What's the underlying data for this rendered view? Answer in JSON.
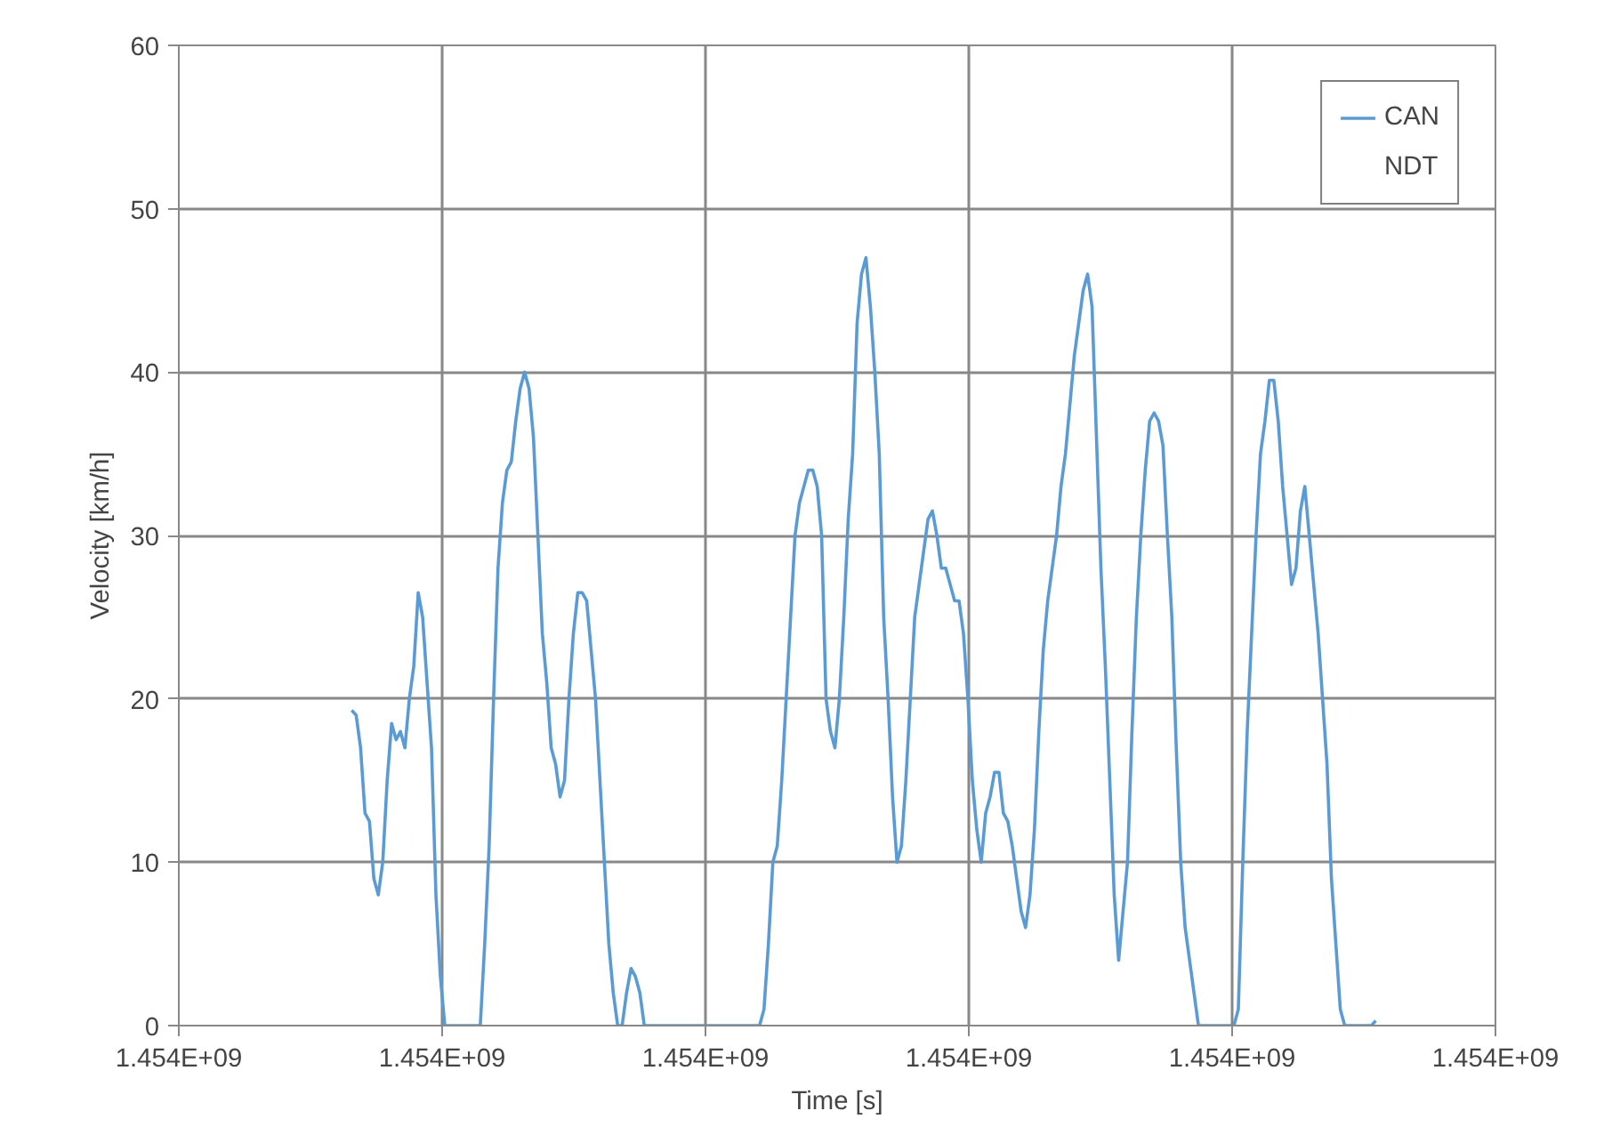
{
  "chart_data": {
    "type": "line",
    "xlabel": "Time [s]",
    "ylabel": "Velocity [km/h]",
    "annotations": [
      "1.454E+09",
      "1.454E+09",
      "1.454E+09",
      "1.454E+09",
      "1.454E+09",
      "1.454E+09"
    ],
    "categories": [
      null,
      null,
      null,
      null,
      null,
      null,
      null,
      null,
      null,
      null,
      null,
      null,
      null,
      null,
      null,
      null,
      null,
      null,
      null,
      null,
      null,
      null,
      null,
      null,
      null,
      null,
      null,
      null,
      null,
      null,
      null,
      null,
      null,
      null,
      null,
      null,
      null,
      null,
      null,
      null,
      null,
      null,
      null,
      null,
      null,
      null,
      null,
      null,
      null,
      null,
      null,
      null,
      null,
      null,
      null,
      null,
      null,
      null,
      null,
      null,
      null,
      null,
      null,
      null,
      null,
      null,
      null,
      null,
      null,
      null,
      null,
      null,
      null,
      null,
      null,
      null,
      null,
      null,
      null,
      null,
      null,
      null,
      null,
      null,
      null,
      null,
      null,
      null,
      null,
      null,
      null,
      null,
      null,
      null,
      null,
      null,
      null,
      null,
      null,
      null,
      null,
      null,
      null,
      null,
      null,
      null,
      null,
      null,
      null,
      null,
      null,
      null,
      null,
      null,
      null,
      null,
      null,
      null,
      null,
      null,
      null,
      null,
      null,
      null,
      null,
      null,
      null,
      null,
      null,
      null,
      null,
      null,
      null,
      null,
      null,
      null,
      null,
      null,
      null,
      null,
      null,
      null,
      null,
      null,
      null,
      null,
      null,
      null,
      null,
      null,
      null,
      null,
      null,
      null,
      null,
      null,
      null,
      null,
      null,
      null,
      null,
      null,
      null,
      null,
      null,
      null,
      null,
      null,
      null,
      null,
      null,
      null,
      null,
      null,
      null,
      null,
      null,
      null,
      null,
      null,
      null,
      null,
      null,
      null,
      null,
      null,
      null,
      null,
      null,
      null,
      null,
      null,
      null,
      null,
      null,
      null,
      null,
      null,
      null,
      null,
      null,
      null,
      null,
      null,
      null,
      null,
      null,
      null,
      null,
      null,
      null,
      null,
      null,
      null,
      null,
      null,
      null,
      null,
      null,
      null,
      null,
      null,
      null,
      null,
      null,
      null,
      null,
      null,
      null,
      null,
      null,
      null,
      null,
      null,
      null,
      null,
      null,
      null,
      null,
      null,
      null,
      null,
      null,
      null,
      null,
      null,
      null,
      null,
      null,
      null,
      null,
      null,
      null,
      null,
      null,
      null,
      null,
      null,
      null,
      null,
      null,
      null,
      null,
      null,
      null,
      null,
      null,
      null,
      null,
      null,
      null,
      null,
      null,
      null,
      null,
      null,
      null,
      null,
      null,
      null,
      null,
      null,
      null,
      null,
      null,
      null,
      null,
      null,
      null,
      null,
      null,
      null,
      null,
      null,
      null,
      null,
      null,
      null
    ],
    "ylim": [
      0,
      60
    ],
    "yticks": [
      0,
      10,
      20,
      30,
      40,
      50,
      60
    ],
    "grid": true,
    "legend": "top right",
    "line_style": "solid",
    "marker": "none",
    "series": [
      {
        "name": "CAN",
        "color": "#5b9bd5",
        "values": [
          null,
          null,
          null,
          null,
          null,
          null,
          null,
          null,
          null,
          null,
          null,
          null,
          null,
          null,
          null,
          null,
          null,
          null,
          null,
          null,
          null,
          null,
          null,
          null,
          null,
          null,
          null,
          null,
          null,
          null,
          null,
          null,
          null,
          null,
          null,
          null,
          null,
          null,
          null,
          19.3,
          19,
          17,
          13,
          12.5,
          9,
          8,
          10,
          15,
          18.5,
          17.5,
          18,
          17,
          20,
          22,
          26.5,
          25,
          21,
          17,
          8,
          3,
          0,
          0,
          0,
          0,
          0,
          0,
          0,
          0,
          0,
          5,
          11,
          20,
          28,
          32,
          34,
          34.5,
          37,
          39,
          40,
          39,
          36,
          30,
          24,
          21,
          17,
          16,
          14,
          15,
          20,
          24,
          26.5,
          26.5,
          26,
          23,
          20,
          15,
          10,
          5,
          2,
          0,
          0,
          2,
          3.5,
          3,
          2,
          0,
          0,
          0,
          0,
          0,
          0,
          0,
          0,
          0,
          0,
          0,
          0,
          0,
          0,
          0,
          0,
          0,
          0,
          0,
          0,
          0,
          0,
          0,
          0,
          0,
          0,
          0,
          1,
          5,
          10,
          11,
          15,
          20,
          25,
          30,
          32,
          33,
          34,
          34,
          33,
          30,
          20,
          18,
          17,
          20,
          25,
          31,
          35,
          43,
          46,
          47,
          44,
          40,
          35,
          25,
          20,
          14,
          10,
          11,
          15,
          20,
          25,
          27,
          29,
          31,
          31.5,
          30,
          28,
          28,
          27,
          26,
          26,
          24,
          20,
          15,
          12,
          10,
          13,
          14,
          15.5,
          15.5,
          13,
          12.5,
          11,
          9,
          7,
          6,
          8,
          12,
          18,
          23,
          26,
          28,
          30,
          33,
          35,
          38,
          41,
          43,
          45,
          46,
          44,
          36,
          28,
          22,
          15,
          8,
          4,
          7,
          10,
          18,
          25,
          30,
          34,
          37,
          37.5,
          37,
          35.5,
          30,
          25,
          17,
          10,
          6,
          4,
          2,
          0,
          0,
          0,
          0,
          0,
          0,
          0,
          0,
          0,
          1,
          10,
          18,
          24,
          30,
          35,
          37,
          39.5,
          39.5,
          37,
          33,
          30,
          27,
          28,
          31.5,
          33,
          30,
          27,
          24,
          20,
          16,
          9,
          5,
          1,
          0,
          0,
          0,
          0,
          0,
          0,
          0,
          0.3,
          null,
          null,
          null,
          null,
          null,
          null,
          null,
          null,
          null,
          null,
          null,
          null,
          null,
          null,
          null,
          null,
          null,
          null,
          null,
          null,
          null,
          null,
          null,
          null,
          null,
          null,
          null
        ]
      },
      {
        "name": "NDT",
        "values": [
          null,
          null,
          null,
          null,
          null,
          null,
          null,
          null,
          null,
          null,
          null,
          null,
          null,
          null,
          null,
          null,
          null,
          null,
          null,
          null,
          null,
          null,
          null,
          null,
          null,
          null,
          null,
          null,
          null,
          null,
          null,
          null,
          null,
          null,
          null,
          null,
          null,
          null,
          null,
          null,
          null,
          null,
          null,
          null,
          null,
          null,
          null,
          null,
          null,
          null,
          null,
          null,
          null,
          null,
          null,
          null,
          null,
          null,
          null,
          null,
          null,
          null,
          null,
          null,
          null,
          null,
          null,
          null,
          null,
          null,
          null,
          null,
          null,
          null,
          null,
          null,
          null,
          null,
          null,
          null,
          null,
          null,
          null,
          null,
          null,
          null,
          null,
          null,
          null,
          null,
          null,
          null,
          null,
          null,
          null,
          null,
          null,
          null,
          null,
          null,
          null,
          null,
          null,
          null,
          null,
          null,
          null,
          null,
          null,
          null,
          null,
          null,
          null,
          null,
          null,
          null,
          null,
          null,
          null,
          null,
          null,
          null,
          null,
          null,
          null,
          null,
          null,
          null,
          null,
          null,
          null,
          null,
          null,
          null,
          null,
          null,
          null,
          null,
          null,
          null,
          null,
          null,
          null,
          null,
          null,
          null,
          null,
          null,
          null,
          null,
          null,
          null,
          null,
          null,
          null,
          null,
          null,
          null,
          null,
          null,
          null,
          null,
          null,
          null,
          null,
          null,
          null,
          null,
          null,
          null,
          null,
          null,
          null,
          null,
          null,
          null,
          null,
          null,
          null,
          null,
          null,
          null,
          null,
          null,
          null,
          null,
          null,
          null,
          null,
          null,
          null,
          null,
          null,
          null,
          null,
          null,
          null,
          null,
          null,
          null,
          null,
          null,
          null,
          null,
          null,
          null,
          null,
          null,
          null,
          null,
          null,
          null,
          null,
          null,
          null,
          null,
          null,
          null,
          null,
          null,
          null,
          null,
          null,
          null,
          null,
          null,
          null,
          null,
          null,
          null,
          null,
          null,
          null,
          null,
          null,
          null,
          null,
          null,
          null,
          null,
          null,
          null,
          null,
          null,
          null,
          null,
          null,
          null,
          null,
          null,
          null,
          null,
          null,
          null,
          null,
          null,
          null,
          null,
          null,
          null,
          null,
          null,
          null,
          null,
          null,
          null,
          null,
          null,
          null,
          null,
          null,
          null,
          null,
          null,
          null,
          null,
          null,
          null,
          null,
          null,
          null,
          null,
          null,
          null,
          null,
          null,
          null,
          null,
          null,
          null,
          null,
          null,
          null,
          null,
          null,
          null,
          null,
          null
        ]
      }
    ]
  }
}
